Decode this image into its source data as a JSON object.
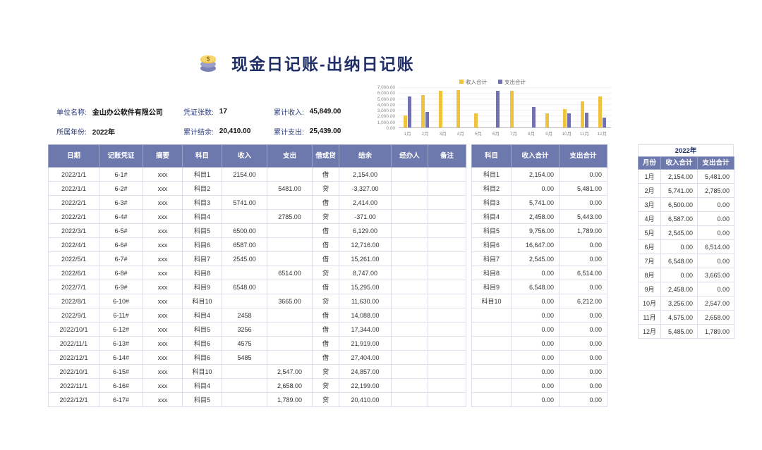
{
  "page": {
    "title": "现金日记账-出纳日记账"
  },
  "info": {
    "fields": [
      {
        "label": "单位名称:",
        "value": "金山办公软件有限公司"
      },
      {
        "label": "凭证张数:",
        "value": "17"
      },
      {
        "label": "累计收入:",
        "value": "45,849.00"
      },
      {
        "label": "所属年份:",
        "value": "2022年"
      },
      {
        "label": "累计结余:",
        "value": "20,410.00"
      },
      {
        "label": "累计支出:",
        "value": "25,439.00"
      }
    ]
  },
  "chart_data": {
    "type": "bar",
    "title": "",
    "categories": [
      "1月",
      "2月",
      "3月",
      "4月",
      "5月",
      "6月",
      "7月",
      "8月",
      "9月",
      "10月",
      "11月",
      "12月"
    ],
    "series": [
      {
        "id": "income",
        "name": "收入合计",
        "color": "#f0c33f",
        "values": [
          2154,
          5741,
          6500,
          6587,
          2545,
          0,
          6548,
          0,
          2458,
          3256,
          4575,
          5485
        ]
      },
      {
        "id": "expense",
        "name": "支出合计",
        "color": "#7170b4",
        "values": [
          5481,
          2785,
          0,
          0,
          0,
          6514,
          0,
          3665,
          0,
          2547,
          2658,
          1789
        ]
      }
    ],
    "ylim": [
      0,
      7000
    ],
    "yticks": [
      "7,000.00",
      "6,000.00",
      "5,000.00",
      "4,000.00",
      "3,000.00",
      "2,000.00",
      "1,000.00",
      "0.00"
    ],
    "legend_position": "top",
    "grid": true
  },
  "main_table": {
    "columns": [
      "日期",
      "记账凭证",
      "摘要",
      "科目",
      "收入",
      "支出",
      "借或贷",
      "结余",
      "经办人",
      "备注"
    ],
    "rows": [
      [
        "2022/1/1",
        "6-1#",
        "xxx",
        "科目1",
        "2154.00",
        "",
        "借",
        "2,154.00",
        "",
        ""
      ],
      [
        "2022/1/1",
        "6-2#",
        "xxx",
        "科目2",
        "",
        "5481.00",
        "贷",
        "-3,327.00",
        "",
        ""
      ],
      [
        "2022/2/1",
        "6-3#",
        "xxx",
        "科目3",
        "5741.00",
        "",
        "借",
        "2,414.00",
        "",
        ""
      ],
      [
        "2022/2/1",
        "6-4#",
        "xxx",
        "科目4",
        "",
        "2785.00",
        "贷",
        "-371.00",
        "",
        ""
      ],
      [
        "2022/3/1",
        "6-5#",
        "xxx",
        "科目5",
        "6500.00",
        "",
        "借",
        "6,129.00",
        "",
        ""
      ],
      [
        "2022/4/1",
        "6-6#",
        "xxx",
        "科目6",
        "6587.00",
        "",
        "借",
        "12,716.00",
        "",
        ""
      ],
      [
        "2022/5/1",
        "6-7#",
        "xxx",
        "科目7",
        "2545.00",
        "",
        "借",
        "15,261.00",
        "",
        ""
      ],
      [
        "2022/6/1",
        "6-8#",
        "xxx",
        "科目8",
        "",
        "6514.00",
        "贷",
        "8,747.00",
        "",
        ""
      ],
      [
        "2022/7/1",
        "6-9#",
        "xxx",
        "科目9",
        "6548.00",
        "",
        "借",
        "15,295.00",
        "",
        ""
      ],
      [
        "2022/8/1",
        "6-10#",
        "xxx",
        "科目10",
        "",
        "3665.00",
        "贷",
        "11,630.00",
        "",
        ""
      ],
      [
        "2022/9/1",
        "6-11#",
        "xxx",
        "科目4",
        "2458",
        "",
        "借",
        "14,088.00",
        "",
        ""
      ],
      [
        "2022/10/1",
        "6-12#",
        "xxx",
        "科目5",
        "3256",
        "",
        "借",
        "17,344.00",
        "",
        ""
      ],
      [
        "2022/11/1",
        "6-13#",
        "xxx",
        "科目6",
        "4575",
        "",
        "借",
        "21,919.00",
        "",
        ""
      ],
      [
        "2022/12/1",
        "6-14#",
        "xxx",
        "科目6",
        "5485",
        "",
        "借",
        "27,404.00",
        "",
        ""
      ],
      [
        "2022/10/1",
        "6-15#",
        "xxx",
        "科目10",
        "",
        "2,547.00",
        "贷",
        "24,857.00",
        "",
        ""
      ],
      [
        "2022/11/1",
        "6-16#",
        "xxx",
        "科目4",
        "",
        "2,658.00",
        "贷",
        "22,199.00",
        "",
        ""
      ],
      [
        "2022/12/1",
        "6-17#",
        "xxx",
        "科目5",
        "",
        "1,789.00",
        "贷",
        "20,410.00",
        "",
        ""
      ]
    ]
  },
  "subject_table": {
    "columns": [
      "科目",
      "收入合计",
      "支出合计"
    ],
    "rows": [
      [
        "科目1",
        "2,154.00",
        "0.00"
      ],
      [
        "科目2",
        "0.00",
        "5,481.00"
      ],
      [
        "科目3",
        "5,741.00",
        "0.00"
      ],
      [
        "科目4",
        "2,458.00",
        "5,443.00"
      ],
      [
        "科目5",
        "9,756.00",
        "1,789.00"
      ],
      [
        "科目6",
        "16,647.00",
        "0.00"
      ],
      [
        "科目7",
        "2,545.00",
        "0.00"
      ],
      [
        "科目8",
        "0.00",
        "6,514.00"
      ],
      [
        "科目9",
        "6,548.00",
        "0.00"
      ],
      [
        "科目10",
        "0.00",
        "6,212.00"
      ],
      [
        "",
        "0.00",
        "0.00"
      ],
      [
        "",
        "0.00",
        "0.00"
      ],
      [
        "",
        "0.00",
        "0.00"
      ],
      [
        "",
        "0.00",
        "0.00"
      ],
      [
        "",
        "0.00",
        "0.00"
      ],
      [
        "",
        "0.00",
        "0.00"
      ],
      [
        "",
        "0.00",
        "0.00"
      ]
    ]
  },
  "month_table": {
    "title": "2022年",
    "columns": [
      "月份",
      "收入合计",
      "支出合计"
    ],
    "rows": [
      [
        "1月",
        "2,154.00",
        "5,481.00"
      ],
      [
        "2月",
        "5,741.00",
        "2,785.00"
      ],
      [
        "3月",
        "6,500.00",
        "0.00"
      ],
      [
        "4月",
        "6,587.00",
        "0.00"
      ],
      [
        "5月",
        "2,545.00",
        "0.00"
      ],
      [
        "6月",
        "0.00",
        "6,514.00"
      ],
      [
        "7月",
        "6,548.00",
        "0.00"
      ],
      [
        "8月",
        "0.00",
        "3,665.00"
      ],
      [
        "9月",
        "2,458.00",
        "0.00"
      ],
      [
        "10月",
        "3,256.00",
        "2,547.00"
      ],
      [
        "11月",
        "4,575.00",
        "2,658.00"
      ],
      [
        "12月",
        "5,485.00",
        "1,789.00"
      ]
    ]
  },
  "colors": {
    "header_purple": "#6d78ad",
    "income_yellow": "#f0c33f",
    "expense_purple": "#7170b4",
    "title_navy": "#1f2e66"
  }
}
